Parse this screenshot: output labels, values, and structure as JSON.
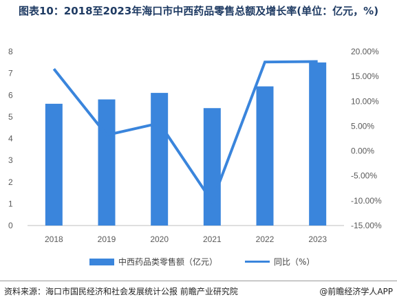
{
  "title": "图表10：2018至2023年海口市中西药品零售总额及增长率(单位：亿元，%)",
  "chart_data": {
    "type": "bar",
    "categories": [
      "2018",
      "2019",
      "2020",
      "2021",
      "2022",
      "2023"
    ],
    "series": [
      {
        "name": "中西药品类零售额（亿元）",
        "type": "bar",
        "axis": "left",
        "values": [
          5.6,
          5.8,
          6.1,
          5.4,
          6.4,
          7.5
        ]
      },
      {
        "name": "同比（%）",
        "type": "line",
        "axis": "right",
        "values": [
          16.5,
          3.2,
          5.6,
          -10.2,
          17.9,
          18.0
        ]
      }
    ],
    "left_axis": {
      "min": 0,
      "max": 8,
      "ticks": [
        "0",
        "1",
        "2",
        "3",
        "4",
        "5",
        "6",
        "7",
        "8"
      ]
    },
    "right_axis": {
      "min": -15,
      "max": 20,
      "ticks": [
        "-15.00%",
        "-10.00%",
        "-5.00%",
        "0.00%",
        "5.00%",
        "10.00%",
        "15.00%",
        "20.00%"
      ]
    },
    "colors": {
      "bar": "#3a85dc",
      "line": "#3a85dc"
    },
    "legend_position": "bottom"
  },
  "legend": {
    "bar_label": "中西药品类零售额（亿元）",
    "line_label": "同比（%）"
  },
  "footer": {
    "source": "资料来源：海口市国民经济和社会发展统计公报 前瞻产业研究院",
    "brand": "@前瞻经济学人APP"
  }
}
